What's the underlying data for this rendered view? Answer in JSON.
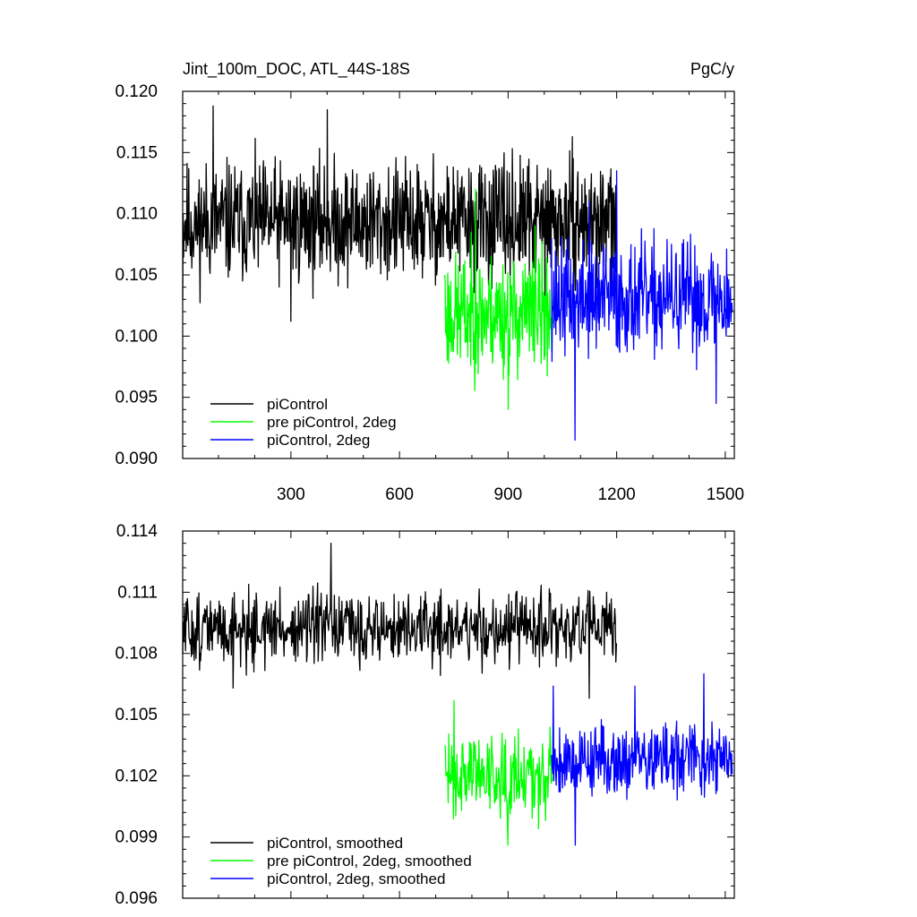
{
  "chart_data": [
    {
      "type": "line",
      "title": "Jint_100m_DOC, ATL_44S-18S",
      "units": "PgC/y",
      "xlim": [
        1,
        1525
      ],
      "ylim": [
        0.09,
        0.12
      ],
      "x_ticks": [
        300,
        600,
        900,
        1200,
        1500
      ],
      "y_ticks": [
        0.09,
        0.095,
        0.1,
        0.105,
        0.11,
        0.115,
        0.12
      ],
      "y_tick_labels": [
        "0.090",
        "0.095",
        "0.100",
        "0.105",
        "0.110",
        "0.115",
        "0.120"
      ],
      "legend_position": "bottom-left",
      "series": [
        {
          "name": "piControl",
          "color": "#000000",
          "x_start": 1,
          "x_end": 1200,
          "mean": 0.1093,
          "noise": 0.003,
          "min": 0.1012,
          "max": 0.1188,
          "seed": 11,
          "sample_points": [
            [
              1,
              0.103
            ],
            [
              40,
              0.11
            ],
            [
              85,
              0.1188
            ],
            [
              300,
              0.1012
            ],
            [
              400,
              0.1185
            ],
            [
              600,
              0.108
            ],
            [
              1000,
              0.1095
            ],
            [
              1200,
              0.1065
            ]
          ]
        },
        {
          "name": "pre piControl, 2deg",
          "color": "#00ff00",
          "x_start": 725,
          "x_end": 1025,
          "mean": 0.1018,
          "noise": 0.003,
          "min": 0.094,
          "max": 0.1122,
          "seed": 23,
          "sample_points": [
            [
              725,
              0.105
            ],
            [
              810,
              0.112
            ],
            [
              900,
              0.094
            ],
            [
              975,
              0.109
            ],
            [
              1025,
              0.101
            ]
          ]
        },
        {
          "name": "piControl, 2deg",
          "color": "#0000ff",
          "x_start": 1020,
          "x_end": 1520,
          "mean": 0.103,
          "noise": 0.0028,
          "min": 0.0915,
          "max": 0.1135,
          "seed": 37,
          "sample_points": [
            [
              1020,
              0.108
            ],
            [
              1085,
              0.0915
            ],
            [
              1125,
              0.111
            ],
            [
              1200,
              0.1135
            ],
            [
              1300,
              0.101
            ],
            [
              1475,
              0.0945
            ],
            [
              1520,
              0.102
            ]
          ]
        }
      ]
    },
    {
      "type": "line",
      "xlim": [
        1,
        1525
      ],
      "ylim": [
        0.096,
        0.114
      ],
      "x_ticks": [
        300,
        600,
        900,
        1200,
        1500
      ],
      "y_ticks": [
        0.096,
        0.099,
        0.102,
        0.105,
        0.108,
        0.111,
        0.114
      ],
      "y_tick_labels": [
        "0.096",
        "0.099",
        "0.102",
        "0.105",
        "0.108",
        "0.111",
        "0.114"
      ],
      "legend_position": "bottom-left",
      "series": [
        {
          "name": "piControl, smoothed",
          "color": "#000000",
          "x_start": 1,
          "x_end": 1200,
          "mean": 0.1092,
          "noise": 0.0011,
          "min": 0.1058,
          "max": 0.1134,
          "seed": 51,
          "sample_points": [
            [
              1,
              0.108
            ],
            [
              140,
              0.1063
            ],
            [
              410,
              0.1134
            ],
            [
              1125,
              0.1058
            ],
            [
              1200,
              0.1085
            ]
          ]
        },
        {
          "name": "pre piControl, 2deg, smoothed",
          "color": "#00ff00",
          "x_start": 725,
          "x_end": 1025,
          "mean": 0.1022,
          "noise": 0.0013,
          "min": 0.0986,
          "max": 0.1057,
          "seed": 63,
          "sample_points": [
            [
              725,
              0.1035
            ],
            [
              750,
              0.1057
            ],
            [
              900,
              0.0986
            ],
            [
              1025,
              0.103
            ]
          ]
        },
        {
          "name": "piControl, 2deg, smoothed",
          "color": "#0000ff",
          "x_start": 1020,
          "x_end": 1520,
          "mean": 0.1028,
          "noise": 0.0011,
          "min": 0.0986,
          "max": 0.107,
          "seed": 79,
          "sample_points": [
            [
              1025,
              0.1064
            ],
            [
              1085,
              0.0986
            ],
            [
              1250,
              0.1064
            ],
            [
              1440,
              0.107
            ],
            [
              1520,
              0.1021
            ]
          ]
        }
      ]
    }
  ]
}
